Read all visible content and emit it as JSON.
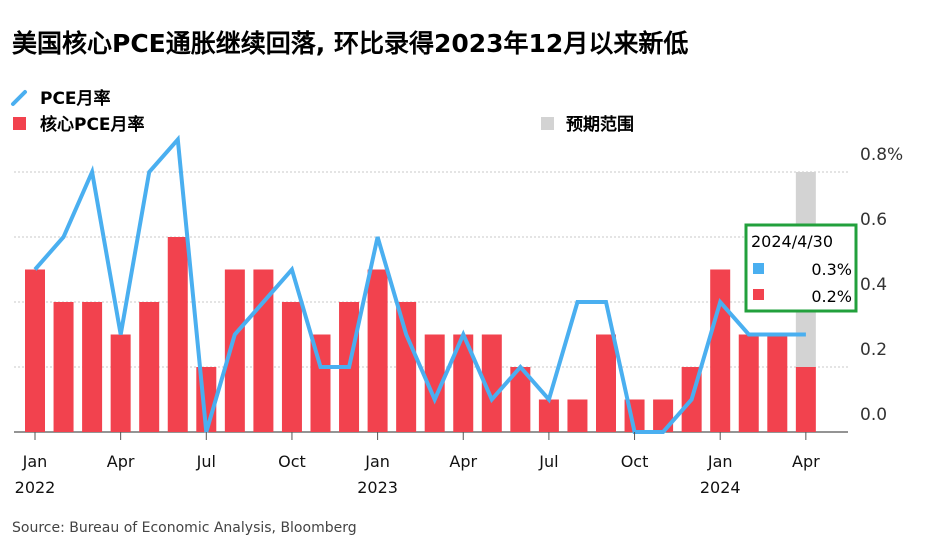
{
  "title": "美国核心PCE通胀继续回落, 环比录得2023年12月以来新低",
  "source": "Source: Bureau of Economic Analysis, Bloomberg",
  "colors": {
    "pce_line": "#4aaff0",
    "core_bar": "#f2424e",
    "expected_range": "#d3d3d3",
    "callout_border": "#22a03c"
  },
  "legend": {
    "pce_label": "PCE月率",
    "core_label": "核心PCE月率",
    "range_label": "预期范围"
  },
  "callout": {
    "date": "2024/4/30",
    "pce_value": "0.3%",
    "core_value": "0.2%"
  },
  "chart_data": {
    "type": "bar",
    "title": "美国核心PCE通胀继续回落, 环比录得2023年12月以来新低",
    "x": [
      "2022-01",
      "2022-02",
      "2022-03",
      "2022-04",
      "2022-05",
      "2022-06",
      "2022-07",
      "2022-08",
      "2022-09",
      "2022-10",
      "2022-11",
      "2022-12",
      "2023-01",
      "2023-02",
      "2023-03",
      "2023-04",
      "2023-05",
      "2023-06",
      "2023-07",
      "2023-08",
      "2023-09",
      "2023-10",
      "2023-11",
      "2023-12",
      "2024-01",
      "2024-02",
      "2024-03",
      "2024-04"
    ],
    "series": [
      {
        "name": "核心PCE月率",
        "type": "bar",
        "values": [
          0.5,
          0.4,
          0.4,
          0.3,
          0.4,
          0.6,
          0.2,
          0.5,
          0.5,
          0.4,
          0.3,
          0.4,
          0.5,
          0.4,
          0.3,
          0.3,
          0.3,
          0.2,
          0.1,
          0.1,
          0.3,
          0.1,
          0.1,
          0.2,
          0.5,
          0.3,
          0.3,
          0.2
        ]
      },
      {
        "name": "PCE月率",
        "type": "line",
        "values": [
          0.5,
          0.6,
          0.8,
          0.3,
          0.8,
          0.9,
          0.0,
          0.3,
          0.4,
          0.5,
          0.2,
          0.2,
          0.6,
          0.3,
          0.1,
          0.3,
          0.1,
          0.2,
          0.1,
          0.4,
          0.4,
          0.0,
          0.0,
          0.1,
          0.4,
          0.3,
          0.3,
          0.3
        ]
      },
      {
        "name": "预期范围",
        "type": "range",
        "x": "2024-04",
        "low": 0.2,
        "high": 0.8
      }
    ],
    "x_tick_labels": [
      {
        "x": "2022-01",
        "month": "Jan",
        "year": "2022"
      },
      {
        "x": "2022-04",
        "month": "Apr",
        "year": ""
      },
      {
        "x": "2022-07",
        "month": "Jul",
        "year": ""
      },
      {
        "x": "2022-10",
        "month": "Oct",
        "year": ""
      },
      {
        "x": "2023-01",
        "month": "Jan",
        "year": "2023"
      },
      {
        "x": "2023-04",
        "month": "Apr",
        "year": ""
      },
      {
        "x": "2023-07",
        "month": "Jul",
        "year": ""
      },
      {
        "x": "2023-10",
        "month": "Oct",
        "year": ""
      },
      {
        "x": "2024-01",
        "month": "Jan",
        "year": "2024"
      },
      {
        "x": "2024-04",
        "month": "Apr",
        "year": ""
      }
    ],
    "y_ticks": [
      0.0,
      0.2,
      0.4,
      0.6,
      0.8
    ],
    "y_tick_labels": [
      "0.0",
      "0.2",
      "0.4",
      "0.6",
      "0.8%"
    ],
    "ylim": [
      0,
      0.8
    ],
    "grid": "horizontal",
    "legend_position": "top-left"
  }
}
